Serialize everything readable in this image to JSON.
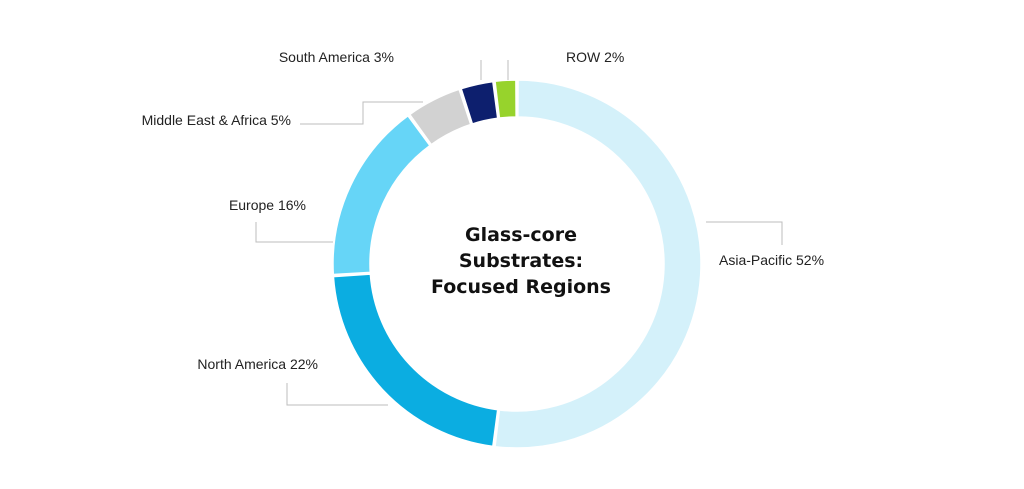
{
  "chart_data": {
    "type": "pie",
    "variant": "donut",
    "title": "Glass-core Substrates: Focused Regions",
    "title_lines": [
      "Glass-core",
      "Substrates:",
      "Focused Regions"
    ],
    "slices": [
      {
        "name": "Asia-Pacific",
        "value": 52,
        "label": "Asia-Pacific 52%",
        "color": "#d4f1fa"
      },
      {
        "name": "North America",
        "value": 22,
        "label": "North America 22%",
        "color": "#0bade1"
      },
      {
        "name": "Europe",
        "value": 16,
        "label": "Europe 16%",
        "color": "#66d5f7"
      },
      {
        "name": "Middle East & Africa",
        "value": 5,
        "label": "Middle East & Africa 5%",
        "color": "#d2d2d2"
      },
      {
        "name": "South America",
        "value": 3,
        "label": "South America 3%",
        "color": "#0d1f6e"
      },
      {
        "name": "ROW",
        "value": 2,
        "label": "ROW 2%",
        "color": "#97d32c"
      }
    ],
    "start": "top",
    "direction": "clockwise",
    "legend": "none"
  }
}
